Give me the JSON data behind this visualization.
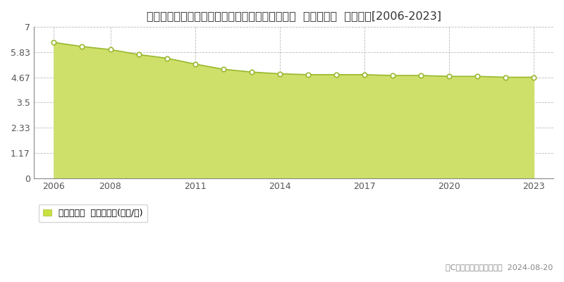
{
  "title": "福島県南会津郡南会津町田島字鎌倉崎乙２４番３  基準地価格  地価推移[2006-2023]",
  "years": [
    2006,
    2007,
    2008,
    2009,
    2010,
    2011,
    2012,
    2013,
    2014,
    2015,
    2016,
    2017,
    2018,
    2019,
    2020,
    2021,
    2022,
    2023
  ],
  "values": [
    6.28,
    6.09,
    5.95,
    5.72,
    5.55,
    5.28,
    5.04,
    4.91,
    4.83,
    4.79,
    4.79,
    4.79,
    4.75,
    4.75,
    4.71,
    4.71,
    4.67,
    4.67
  ],
  "ylim": [
    0,
    7
  ],
  "yticks": [
    0,
    1.17,
    2.33,
    3.5,
    4.67,
    5.83,
    7
  ],
  "ytick_labels": [
    "0",
    "1.17",
    "2.33",
    "3.5",
    "4.67",
    "5.83",
    "7"
  ],
  "xtick_years": [
    2006,
    2008,
    2011,
    2014,
    2017,
    2020,
    2023
  ],
  "xlim_left": 2005.3,
  "xlim_right": 2023.7,
  "fill_color": "#cfe06a",
  "line_color": "#9ab82e",
  "marker_facecolor": "#ffffff",
  "marker_edgecolor": "#9ab82e",
  "grid_color": "#bbbbbb",
  "bg_color": "#ffffff",
  "legend_label": "基準地価格  平均坪単価(万円/坪)",
  "legend_square_color": "#c8e040",
  "copyright_text": "（C）土地価格ドットコム  2024-08-20",
  "title_fontsize": 11.5,
  "axis_fontsize": 9,
  "legend_fontsize": 9,
  "copyright_fontsize": 8
}
